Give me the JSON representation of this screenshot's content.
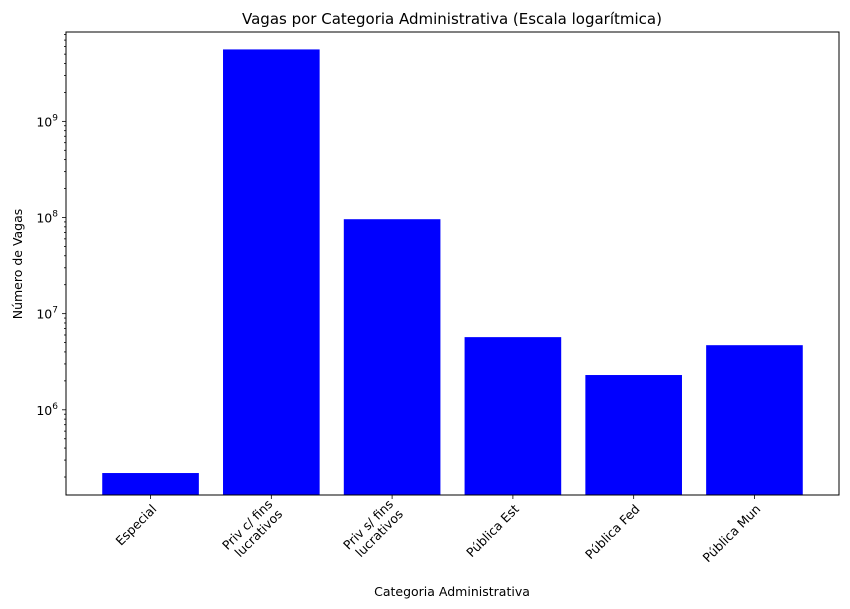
{
  "chart_data": {
    "type": "bar",
    "title": "Vagas por Categoria Administrativa (Escala logarítmica)",
    "xlabel": "Categoria Administrativa",
    "ylabel": "Número de Vagas",
    "yscale": "log",
    "ylim": [
      130000,
      8500000000
    ],
    "yticks": [
      {
        "value": 1000000,
        "exp": "6"
      },
      {
        "value": 10000000,
        "exp": "7"
      },
      {
        "value": 100000000,
        "exp": "8"
      },
      {
        "value": 1000000000,
        "exp": "9"
      }
    ],
    "tick_base": "10",
    "categories": [
      [
        "Especial"
      ],
      [
        "Priv c/ fins",
        "lucrativos"
      ],
      [
        "Priv s/ fins",
        "lucrativos"
      ],
      [
        "Pública Est"
      ],
      [
        "Pública Fed"
      ],
      [
        "Pública Mun"
      ]
    ],
    "values": [
      220000,
      5600000000,
      96000000,
      5700000,
      2300000,
      4700000
    ],
    "bar_color": "#0000ff",
    "grid": false
  }
}
